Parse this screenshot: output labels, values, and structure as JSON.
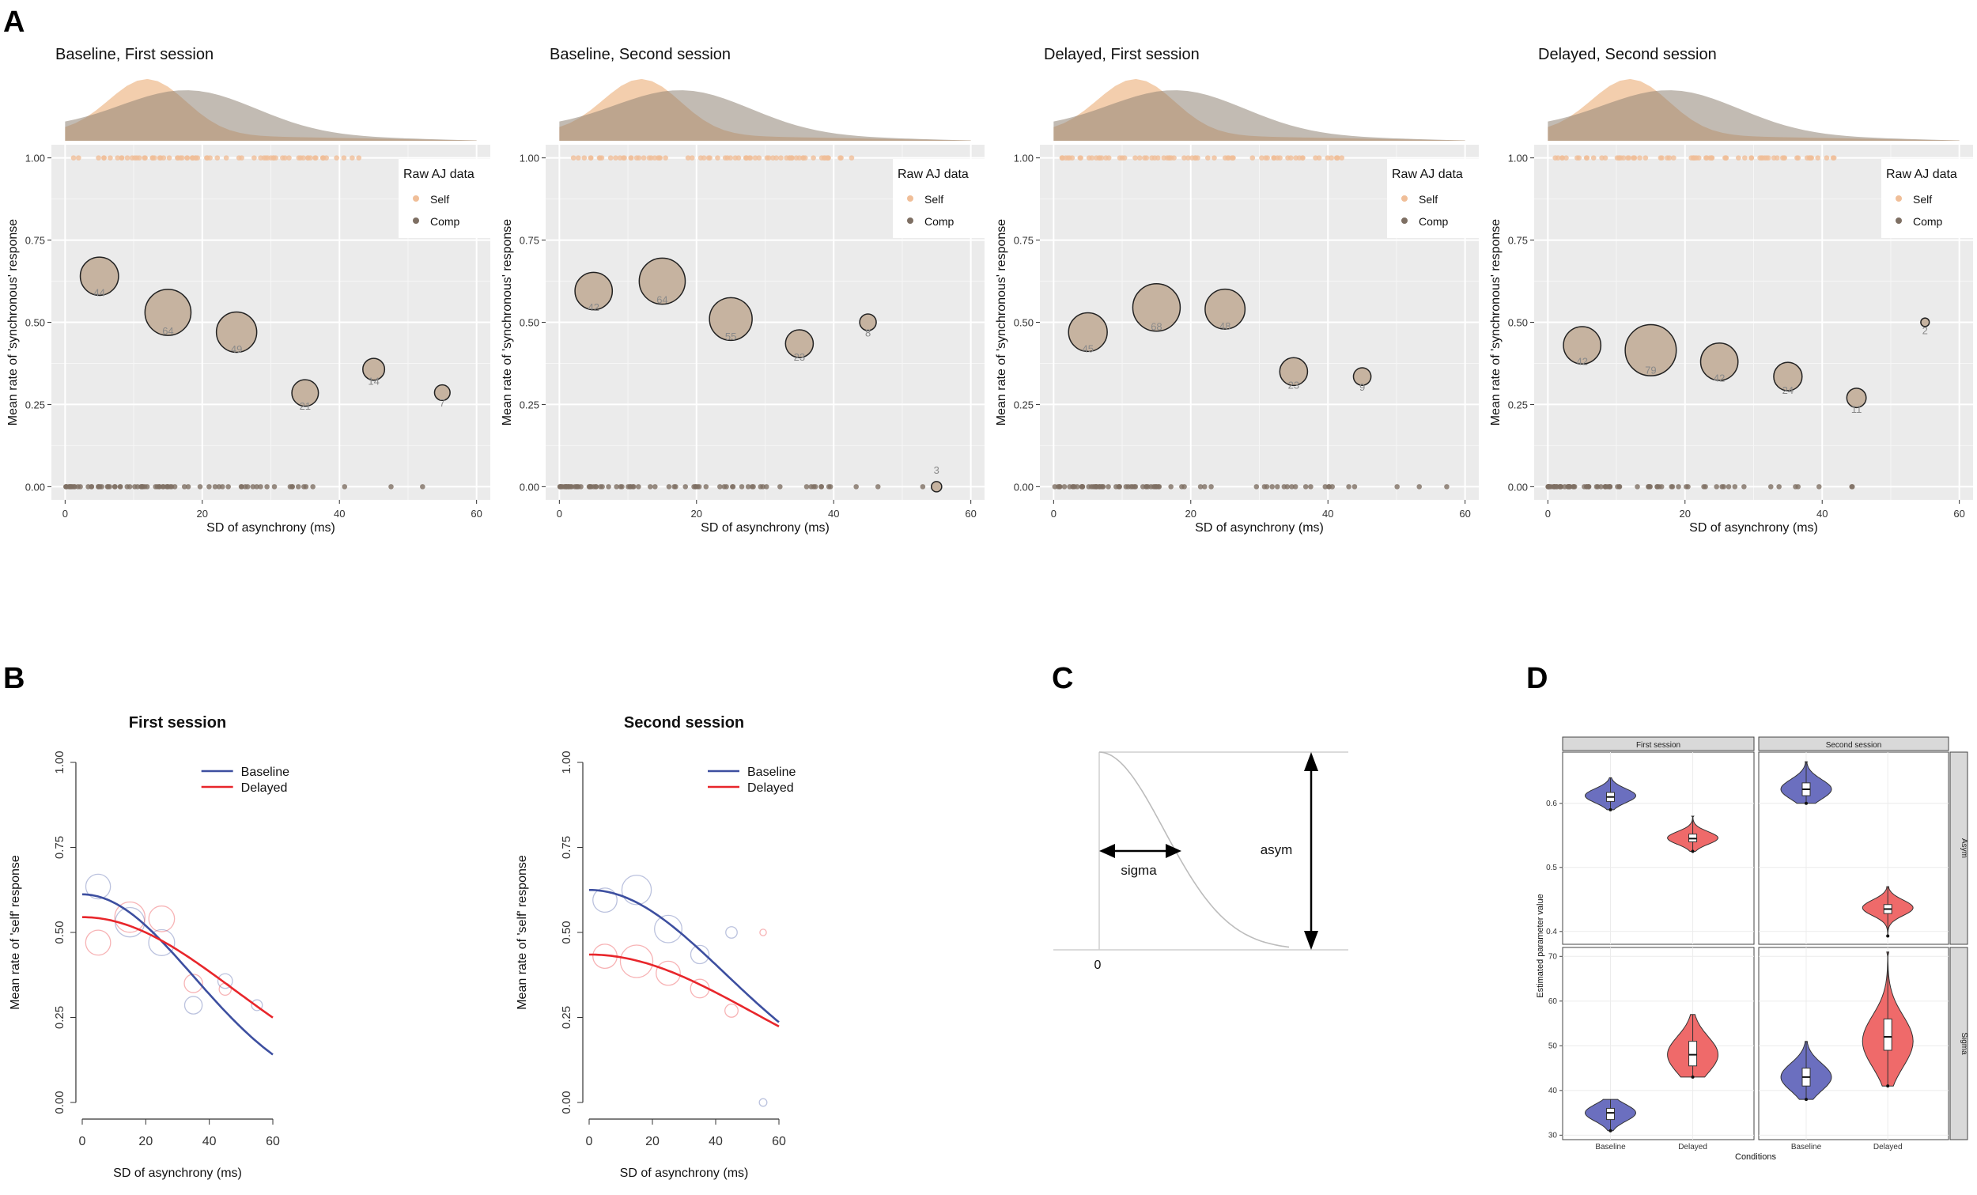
{
  "panel_letters": {
    "a": "A",
    "b": "B",
    "c": "C",
    "d": "D"
  },
  "colors": {
    "panel_bg": "#ebebeb",
    "grid": "#ffffff",
    "self_density": "#f2c9a4",
    "comp_density": "#8f8375",
    "overlap_density": "#c8ab8f",
    "self_point": "#f0be98",
    "comp_point": "#7e6f63",
    "bubble_fill": "#c6b3a0",
    "baseline": "#3d4fa0",
    "delayed": "#e8262b",
    "violin_blue": "#6b6fbf",
    "violin_red": "#ef6a6a"
  },
  "chart_data": [
    {
      "id": "A1",
      "type": "scatter",
      "title": "Baseline, First session",
      "xlabel": "SD of asynchrony (ms)",
      "ylabel": "Mean rate of 'synchronous' response",
      "xlim": [
        -2,
        62
      ],
      "ylim": [
        -0.04,
        1.04
      ],
      "xticks": [
        "0",
        "20",
        "40",
        "60"
      ],
      "yticks": [
        "0.00",
        "0.25",
        "0.50",
        "0.75",
        "1.00"
      ],
      "legend": {
        "title": "Raw AJ data",
        "items": [
          "Self",
          "Comp"
        ],
        "position": "top-right"
      },
      "bubbles": [
        {
          "x": 5,
          "y": 0.64,
          "n": "44"
        },
        {
          "x": 15,
          "y": 0.53,
          "n": "64"
        },
        {
          "x": 25,
          "y": 0.47,
          "n": "49"
        },
        {
          "x": 35,
          "y": 0.285,
          "n": "21"
        },
        {
          "x": 45,
          "y": 0.357,
          "n": "14"
        },
        {
          "x": 55,
          "y": 0.286,
          "n": "7"
        }
      ]
    },
    {
      "id": "A2",
      "type": "scatter",
      "title": "Baseline, Second session",
      "xlabel": "SD of asynchrony (ms)",
      "ylabel": "Mean rate of 'synchronous' response",
      "xlim": [
        -2,
        62
      ],
      "ylim": [
        -0.04,
        1.04
      ],
      "xticks": [
        "0",
        "20",
        "40",
        "60"
      ],
      "yticks": [
        "0.00",
        "0.25",
        "0.50",
        "0.75",
        "1.00"
      ],
      "legend": {
        "title": "Raw AJ data",
        "items": [
          "Self",
          "Comp"
        ],
        "position": "top-right"
      },
      "bubbles": [
        {
          "x": 5,
          "y": 0.595,
          "n": "42"
        },
        {
          "x": 15,
          "y": 0.625,
          "n": "64"
        },
        {
          "x": 25,
          "y": 0.51,
          "n": "55"
        },
        {
          "x": 35,
          "y": 0.435,
          "n": "23"
        },
        {
          "x": 45,
          "y": 0.5,
          "n": "8"
        },
        {
          "x": 55,
          "y": 0.0,
          "n": "3"
        }
      ]
    },
    {
      "id": "A3",
      "type": "scatter",
      "title": "Delayed, First session",
      "xlabel": "SD of asynchrony (ms)",
      "ylabel": "Mean rate of 'synchronous' response",
      "xlim": [
        -2,
        62
      ],
      "ylim": [
        -0.04,
        1.04
      ],
      "xticks": [
        "0",
        "20",
        "40",
        "60"
      ],
      "yticks": [
        "0.00",
        "0.25",
        "0.50",
        "0.75",
        "1.00"
      ],
      "legend": {
        "title": "Raw AJ data",
        "items": [
          "Self",
          "Comp"
        ],
        "position": "top-right"
      },
      "bubbles": [
        {
          "x": 5,
          "y": 0.47,
          "n": "45"
        },
        {
          "x": 15,
          "y": 0.545,
          "n": "68"
        },
        {
          "x": 25,
          "y": 0.54,
          "n": "48"
        },
        {
          "x": 35,
          "y": 0.35,
          "n": "23"
        },
        {
          "x": 45,
          "y": 0.335,
          "n": "9"
        }
      ]
    },
    {
      "id": "A4",
      "type": "scatter",
      "title": "Delayed, Second session",
      "xlabel": "SD of asynchrony (ms)",
      "ylabel": "Mean rate of 'synchronous' response",
      "xlim": [
        -2,
        62
      ],
      "ylim": [
        -0.04,
        1.04
      ],
      "xticks": [
        "0",
        "20",
        "40",
        "60"
      ],
      "yticks": [
        "0.00",
        "0.25",
        "0.50",
        "0.75",
        "1.00"
      ],
      "legend": {
        "title": "Raw AJ data",
        "items": [
          "Self",
          "Comp"
        ],
        "position": "top-right"
      },
      "bubbles": [
        {
          "x": 5,
          "y": 0.43,
          "n": "42"
        },
        {
          "x": 15,
          "y": 0.415,
          "n": "79"
        },
        {
          "x": 25,
          "y": 0.38,
          "n": "42"
        },
        {
          "x": 35,
          "y": 0.335,
          "n": "24"
        },
        {
          "x": 45,
          "y": 0.27,
          "n": "11"
        },
        {
          "x": 55,
          "y": 0.5,
          "n": "2"
        }
      ]
    },
    {
      "id": "B1",
      "type": "line",
      "title": "First session",
      "xlabel": "SD of asynchrony (ms)",
      "ylabel": "Mean rate of 'self' response",
      "xlim": [
        -2,
        62
      ],
      "ylim": [
        -0.02,
        1.02
      ],
      "xticks": [
        "0",
        "20",
        "40",
        "60"
      ],
      "yticks": [
        "0.00",
        "0.25",
        "0.50",
        "0.75",
        "1.00"
      ],
      "legend": {
        "items": [
          "Baseline",
          "Delayed"
        ],
        "position": "top-right"
      },
      "series": [
        {
          "name": "Baseline",
          "asym": 0.612,
          "sigma": 35
        },
        {
          "name": "Delayed",
          "asym": 0.545,
          "sigma": 48
        }
      ],
      "points": [
        {
          "series": "Baseline",
          "x": 5,
          "y": 0.635,
          "w": 44
        },
        {
          "series": "Baseline",
          "x": 15,
          "y": 0.53,
          "w": 64
        },
        {
          "series": "Baseline",
          "x": 25,
          "y": 0.47,
          "w": 49
        },
        {
          "series": "Baseline",
          "x": 35,
          "y": 0.286,
          "w": 21
        },
        {
          "series": "Baseline",
          "x": 45,
          "y": 0.357,
          "w": 14
        },
        {
          "series": "Baseline",
          "x": 55,
          "y": 0.286,
          "w": 7
        },
        {
          "series": "Delayed",
          "x": 5,
          "y": 0.47,
          "w": 45
        },
        {
          "series": "Delayed",
          "x": 15,
          "y": 0.545,
          "w": 68
        },
        {
          "series": "Delayed",
          "x": 25,
          "y": 0.54,
          "w": 48
        },
        {
          "series": "Delayed",
          "x": 35,
          "y": 0.35,
          "w": 23
        },
        {
          "series": "Delayed",
          "x": 45,
          "y": 0.333,
          "w": 9
        }
      ]
    },
    {
      "id": "B2",
      "type": "line",
      "title": "Second session",
      "xlabel": "SD of asynchrony (ms)",
      "ylabel": "Mean rate of 'self' response",
      "xlim": [
        -2,
        62
      ],
      "ylim": [
        -0.02,
        1.02
      ],
      "xticks": [
        "0",
        "20",
        "40",
        "60"
      ],
      "yticks": [
        "0.00",
        "0.25",
        "0.50",
        "0.75",
        "1.00"
      ],
      "legend": {
        "items": [
          "Baseline",
          "Delayed"
        ],
        "position": "top-right"
      },
      "series": [
        {
          "name": "Baseline",
          "asym": 0.625,
          "sigma": 43
        },
        {
          "name": "Delayed",
          "asym": 0.435,
          "sigma": 52
        }
      ],
      "points": [
        {
          "series": "Baseline",
          "x": 5,
          "y": 0.595,
          "w": 42
        },
        {
          "series": "Baseline",
          "x": 15,
          "y": 0.625,
          "w": 64
        },
        {
          "series": "Baseline",
          "x": 25,
          "y": 0.51,
          "w": 55
        },
        {
          "series": "Baseline",
          "x": 35,
          "y": 0.435,
          "w": 23
        },
        {
          "series": "Baseline",
          "x": 45,
          "y": 0.5,
          "w": 8
        },
        {
          "series": "Baseline",
          "x": 55,
          "y": 0.0,
          "w": 3
        },
        {
          "series": "Delayed",
          "x": 5,
          "y": 0.43,
          "w": 42
        },
        {
          "series": "Delayed",
          "x": 15,
          "y": 0.415,
          "w": 79
        },
        {
          "series": "Delayed",
          "x": 25,
          "y": 0.38,
          "w": 42
        },
        {
          "series": "Delayed",
          "x": 35,
          "y": 0.335,
          "w": 24
        },
        {
          "series": "Delayed",
          "x": 45,
          "y": 0.27,
          "w": 11
        },
        {
          "series": "Delayed",
          "x": 55,
          "y": 0.5,
          "w": 2
        }
      ]
    },
    {
      "id": "C",
      "type": "diagram",
      "labels": {
        "sigma": "sigma",
        "asym": "asym",
        "origin": "0"
      }
    },
    {
      "id": "D",
      "type": "violin",
      "xlabel": "Conditions",
      "ylabel": "Estimated parameter value",
      "categories": [
        "Baseline",
        "Delayed"
      ],
      "facets_col": [
        "First session",
        "Second session"
      ],
      "facets_row": [
        "Asym",
        "Sigma"
      ],
      "asym_ticks": [
        "0.4",
        "0.5",
        "0.6"
      ],
      "asym_ylim": [
        0.38,
        0.68
      ],
      "sigma_ticks": [
        "30",
        "40",
        "50",
        "60",
        "70"
      ],
      "sigma_ylim": [
        29,
        72
      ],
      "violins": [
        {
          "row": "Asym",
          "col": "First session",
          "cat": "Baseline",
          "min": 0.59,
          "q1": 0.603,
          "med": 0.61,
          "q3": 0.617,
          "max": 0.64,
          "mode": 0.612
        },
        {
          "row": "Asym",
          "col": "First session",
          "cat": "Delayed",
          "min": 0.525,
          "q1": 0.54,
          "med": 0.545,
          "q3": 0.552,
          "max": 0.58,
          "mode": 0.546
        },
        {
          "row": "Asym",
          "col": "Second session",
          "cat": "Baseline",
          "min": 0.6,
          "q1": 0.612,
          "med": 0.622,
          "q3": 0.632,
          "max": 0.665,
          "mode": 0.622
        },
        {
          "row": "Asym",
          "col": "Second session",
          "cat": "Delayed",
          "min": 0.393,
          "q1": 0.428,
          "med": 0.435,
          "q3": 0.442,
          "max": 0.47,
          "mode": 0.437
        },
        {
          "row": "Sigma",
          "col": "First session",
          "cat": "Baseline",
          "min": 31,
          "q1": 33.5,
          "med": 35,
          "q3": 36,
          "max": 38,
          "mode": 35
        },
        {
          "row": "Sigma",
          "col": "First session",
          "cat": "Delayed",
          "min": 43,
          "q1": 45.5,
          "med": 48,
          "q3": 51,
          "max": 57,
          "mode": 48
        },
        {
          "row": "Sigma",
          "col": "Second session",
          "cat": "Baseline",
          "min": 38,
          "q1": 41,
          "med": 43,
          "q3": 45,
          "max": 51,
          "mode": 43
        },
        {
          "row": "Sigma",
          "col": "Second session",
          "cat": "Delayed",
          "min": 41,
          "q1": 49,
          "med": 52,
          "q3": 56,
          "max": 71,
          "mode": 51
        }
      ]
    }
  ]
}
